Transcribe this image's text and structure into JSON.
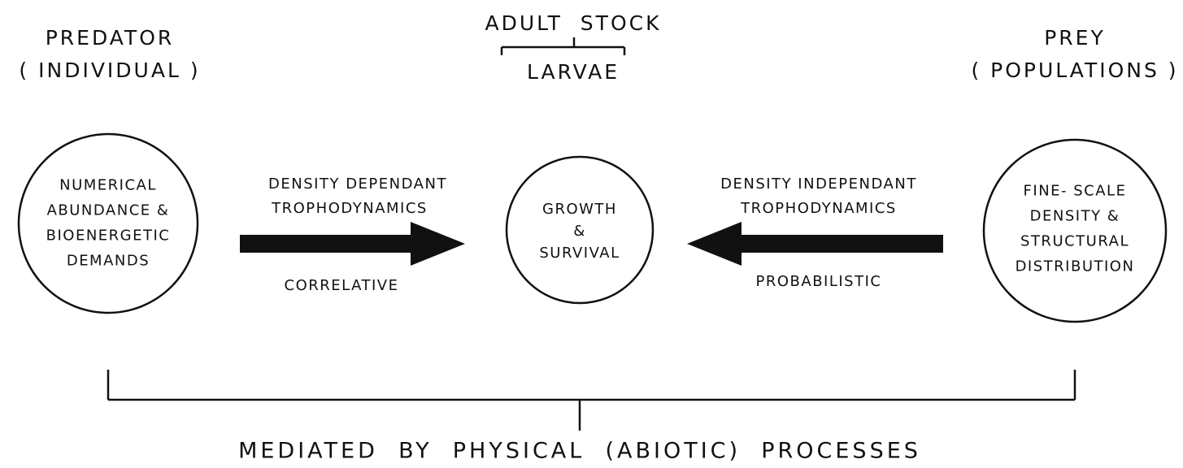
{
  "predator": {
    "title": "PREDATOR",
    "subtitle": "( INDIVIDUAL )"
  },
  "stock": {
    "top": "ADULT  STOCK",
    "bottom": "LARVAE"
  },
  "prey": {
    "title": "PREY",
    "subtitle": "( POPULATIONS )"
  },
  "left_circle": {
    "lines": [
      "NUMERICAL",
      "ABUNDANCE &",
      "BIOENERGETIC",
      "DEMANDS"
    ]
  },
  "left_arrow": {
    "above": [
      "DENSITY DEPENDANT",
      "TROPHODYNAMICS"
    ],
    "below": "CORRELATIVE"
  },
  "center_circle": {
    "lines": [
      "GROWTH",
      "&",
      "SURVIVAL"
    ]
  },
  "right_arrow": {
    "above": [
      "DENSITY INDEPENDANT",
      "TROPHODYNAMICS"
    ],
    "below": "PROBABILISTIC"
  },
  "right_circle": {
    "lines": [
      "FINE- SCALE",
      "DENSITY &",
      "STRUCTURAL",
      "DISTRIBUTION"
    ]
  },
  "footer": "MEDIATED  BY  PHYSICAL  (ABIOTIC)  PROCESSES"
}
